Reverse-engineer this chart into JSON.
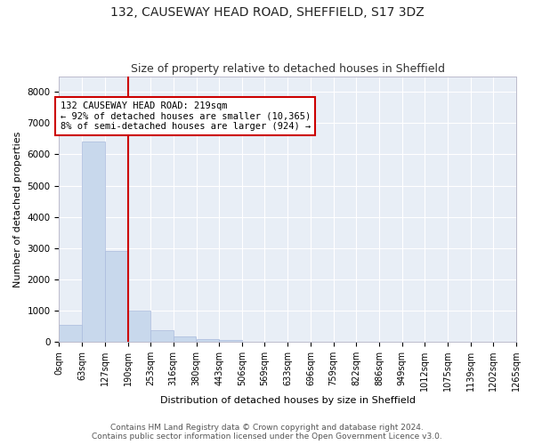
{
  "title1": "132, CAUSEWAY HEAD ROAD, SHEFFIELD, S17 3DZ",
  "title2": "Size of property relative to detached houses in Sheffield",
  "xlabel": "Distribution of detached houses by size in Sheffield",
  "ylabel": "Number of detached properties",
  "bar_color": "#c8d8ec",
  "bar_edge_color": "#aabbdd",
  "plot_bg_color": "#e8eef6",
  "fig_bg_color": "#ffffff",
  "grid_color": "#ffffff",
  "annotation_line_color": "#cc0000",
  "annotation_box_edgecolor": "#cc0000",
  "annotation_text": "132 CAUSEWAY HEAD ROAD: 219sqm\n← 92% of detached houses are smaller (10,365)\n8% of semi-detached houses are larger (924) →",
  "property_line_x": 190,
  "bins": [
    0,
    63,
    127,
    190,
    253,
    316,
    380,
    443,
    506,
    569,
    633,
    696,
    759,
    822,
    886,
    949,
    1012,
    1075,
    1139,
    1202,
    1265
  ],
  "bin_labels": [
    "0sqm",
    "63sqm",
    "127sqm",
    "190sqm",
    "253sqm",
    "316sqm",
    "380sqm",
    "443sqm",
    "506sqm",
    "569sqm",
    "633sqm",
    "696sqm",
    "759sqm",
    "822sqm",
    "886sqm",
    "949sqm",
    "1012sqm",
    "1075sqm",
    "1139sqm",
    "1202sqm",
    "1265sqm"
  ],
  "counts": [
    560,
    6400,
    2900,
    1000,
    380,
    180,
    100,
    50,
    0,
    0,
    0,
    0,
    0,
    0,
    0,
    0,
    0,
    0,
    0,
    0
  ],
  "ylim": [
    0,
    8500
  ],
  "yticks": [
    0,
    1000,
    2000,
    3000,
    4000,
    5000,
    6000,
    7000,
    8000
  ],
  "footer": "Contains HM Land Registry data © Crown copyright and database right 2024.\nContains public sector information licensed under the Open Government Licence v3.0.",
  "title1_fontsize": 10,
  "title2_fontsize": 9,
  "axis_label_fontsize": 8,
  "tick_fontsize": 7.5,
  "annotation_fontsize": 7.5,
  "footer_fontsize": 6.5
}
